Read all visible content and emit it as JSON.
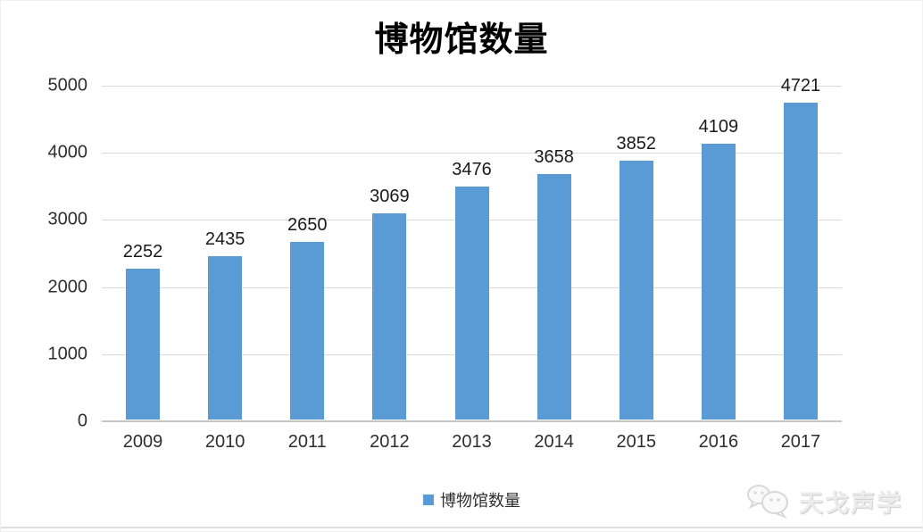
{
  "title": "博物馆数量",
  "legend": {
    "label": "博物馆数量"
  },
  "watermark": {
    "text": "天戈声学",
    "icon": "wechat-chat-bubbles-icon"
  },
  "colors": {
    "bar": "#5b9bd5",
    "gridline": "#d9d9d9",
    "axis_line": "#c6c6c6",
    "label_text": "#1a1a1a",
    "tick_text": "#2e2e2e"
  },
  "chart_data": {
    "type": "bar",
    "title": "博物馆数量",
    "categories": [
      "2009",
      "2010",
      "2011",
      "2012",
      "2013",
      "2014",
      "2015",
      "2016",
      "2017"
    ],
    "values": [
      2252,
      2435,
      2650,
      3069,
      3476,
      3658,
      3852,
      4109,
      4721
    ],
    "series_name": "博物馆数量",
    "xlabel": "",
    "ylabel": "",
    "ylim": [
      0,
      5000
    ],
    "ytick_step": 1000,
    "yticks": [
      0,
      1000,
      2000,
      3000,
      4000,
      5000
    ],
    "grid": true,
    "data_labels": true,
    "legend_position": "bottom"
  }
}
